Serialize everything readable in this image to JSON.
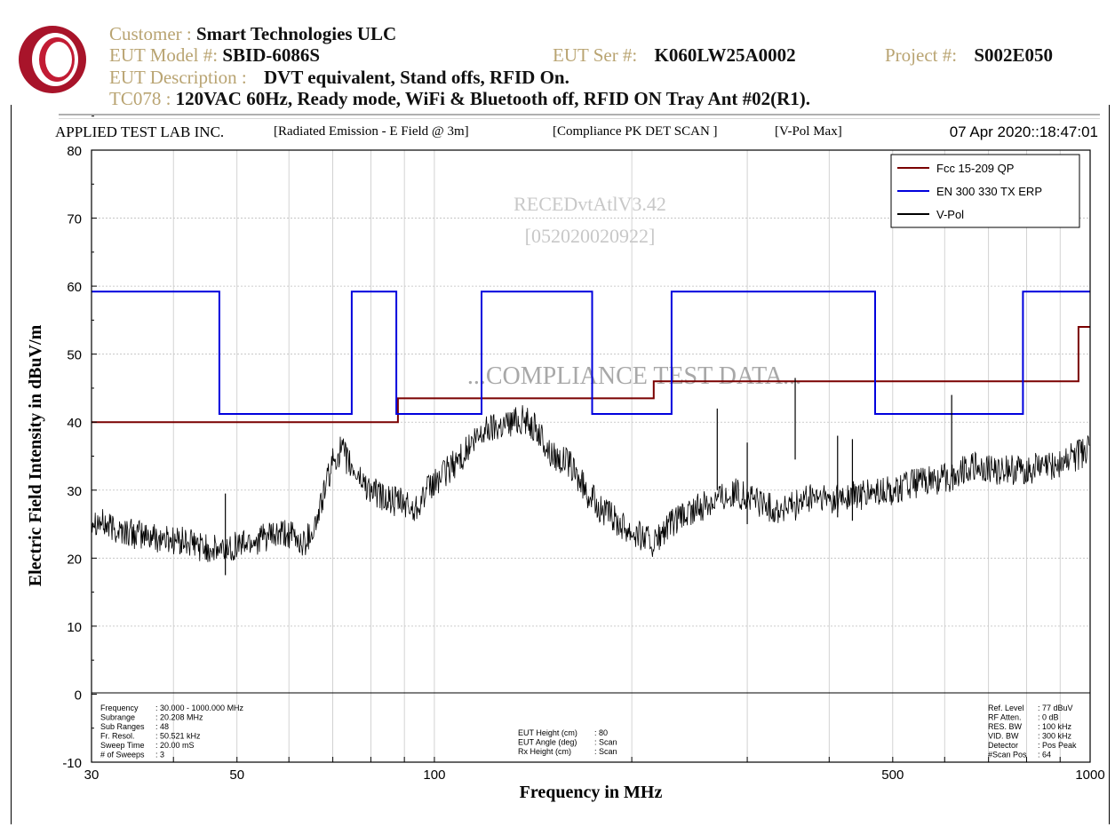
{
  "header": {
    "customer_label": "Customer :",
    "customer_value": "Smart Technologies ULC",
    "model_label": "EUT Model #:",
    "model_value": "SBID-6086S",
    "ser_label": "EUT Ser #:",
    "ser_value": "K060LW25A0002",
    "project_label": "Project #:",
    "project_value": "S002E050",
    "desc_label": "EUT Description :",
    "desc_value": "DVT equivalent, Stand offs, RFID On.",
    "tc_label": "TC078 :",
    "tc_value": "120VAC 60Hz, Ready mode, WiFi & Bluetooth off, RFID ON Tray Ant #02(R1)."
  },
  "subheader": {
    "lab": "APPLIED TEST LAB INC.",
    "test": "[Radiated Emission - E Field @ 3m]",
    "scan": "[Compliance PK DET SCAN ]",
    "pol": "[V-Pol Max]",
    "datetime": "07 Apr 2020::18:47:01"
  },
  "watermark": {
    "line1": "RECEDvtAtlV3.42",
    "line2": "[052020020922]",
    "compliance": "...COMPLIANCE TEST DATA..."
  },
  "info_left": {
    "labels": [
      "Frequency",
      "Subrange",
      "Sub Ranges",
      "Fr. Resol.",
      "Sweep Time",
      "# of Sweeps"
    ],
    "values": [
      ": 30.000 - 1000.000 MHz",
      ": 20.208 MHz",
      ": 48",
      ": 50.521 kHz",
      ": 20.00 mS",
      ": 3"
    ]
  },
  "info_mid": {
    "labels": [
      "EUT Height (cm)",
      "EUT Angle (deg)",
      "Rx Height (cm)"
    ],
    "values": [
      ": 80",
      ": Scan",
      ": Scan"
    ]
  },
  "info_right": {
    "labels": [
      "Ref. Level",
      "RF Atten.",
      "RES. BW",
      "VID. BW",
      "Detector",
      "#Scan Pos"
    ],
    "values": [
      ": 77 dBuV",
      ": 0 dB",
      ": 100 kHz",
      ": 300 kHz",
      ": Pos Peak",
      ": 64"
    ]
  },
  "chart_data": {
    "type": "line",
    "title": "",
    "xlabel": "Frequency in MHz",
    "ylabel": "Electric Field Intensity in dBuV/m",
    "x_scale": "log",
    "xlim": [
      30,
      1000
    ],
    "ylim": [
      -10,
      80
    ],
    "x_ticks": [
      30,
      50,
      100,
      500,
      1000
    ],
    "y_ticks": [
      -10,
      0,
      10,
      20,
      30,
      40,
      50,
      60,
      70,
      80
    ],
    "grid": true,
    "legend_position": "top-right",
    "series": [
      {
        "name": "Fcc 15-209 QP",
        "color": "#7a0000",
        "step": true,
        "x": [
          30,
          88,
          88,
          216,
          216,
          960,
          960,
          1000
        ],
        "y": [
          40,
          40,
          43.5,
          43.5,
          46,
          46,
          54,
          54
        ]
      },
      {
        "name": "EN 300 330 TX ERP",
        "color": "#0000dd",
        "step": true,
        "x": [
          30,
          47,
          47,
          74.8,
          74.8,
          87.5,
          87.5,
          118,
          118,
          174,
          174,
          230,
          230,
          470,
          470,
          790,
          790,
          1000
        ],
        "y": [
          59.2,
          59.2,
          41.2,
          41.2,
          59.2,
          59.2,
          41.2,
          41.2,
          59.2,
          59.2,
          41.2,
          41.2,
          59.2,
          59.2,
          41.2,
          41.2,
          59.2,
          59.2
        ]
      },
      {
        "name": "V-Pol",
        "color": "#000000",
        "x": [
          30,
          32,
          35,
          38,
          41,
          45,
          47,
          50,
          55,
          60,
          63,
          66,
          68,
          70,
          72,
          75,
          80,
          85,
          90,
          93,
          95,
          100,
          105,
          110,
          115,
          120,
          125,
          130,
          135,
          140,
          145,
          150,
          160,
          170,
          180,
          190,
          200,
          210,
          216,
          230,
          250,
          270,
          290,
          310,
          330,
          350,
          360,
          380,
          400,
          430,
          470,
          500,
          540,
          580,
          620,
          640,
          650,
          700,
          750,
          800,
          850,
          900,
          950,
          1000
        ],
        "y": [
          26,
          24.5,
          23.5,
          23,
          22.5,
          21.5,
          21,
          22,
          23,
          23.5,
          22,
          25,
          30,
          34,
          36,
          33,
          30,
          28.5,
          28,
          27,
          28.5,
          31,
          33,
          35,
          37,
          39,
          39.5,
          40,
          40.5,
          40,
          38,
          35.5,
          34,
          30,
          27,
          25.5,
          24,
          23,
          22,
          25,
          27,
          29,
          29.5,
          28.5,
          27,
          27.5,
          28,
          29,
          28.5,
          29,
          29.5,
          30,
          31,
          31.5,
          32,
          33,
          33.5,
          33,
          33,
          33,
          33.5,
          34,
          35,
          36
        ]
      }
    ],
    "peaks": [
      {
        "x": 270,
        "y": 42
      },
      {
        "x": 300,
        "y": 37
      },
      {
        "x": 355,
        "y": 46.5
      },
      {
        "x": 412,
        "y": 38
      },
      {
        "x": 434,
        "y": 37.5
      },
      {
        "x": 615,
        "y": 44
      },
      {
        "x": 48,
        "y": 29.5
      }
    ]
  }
}
